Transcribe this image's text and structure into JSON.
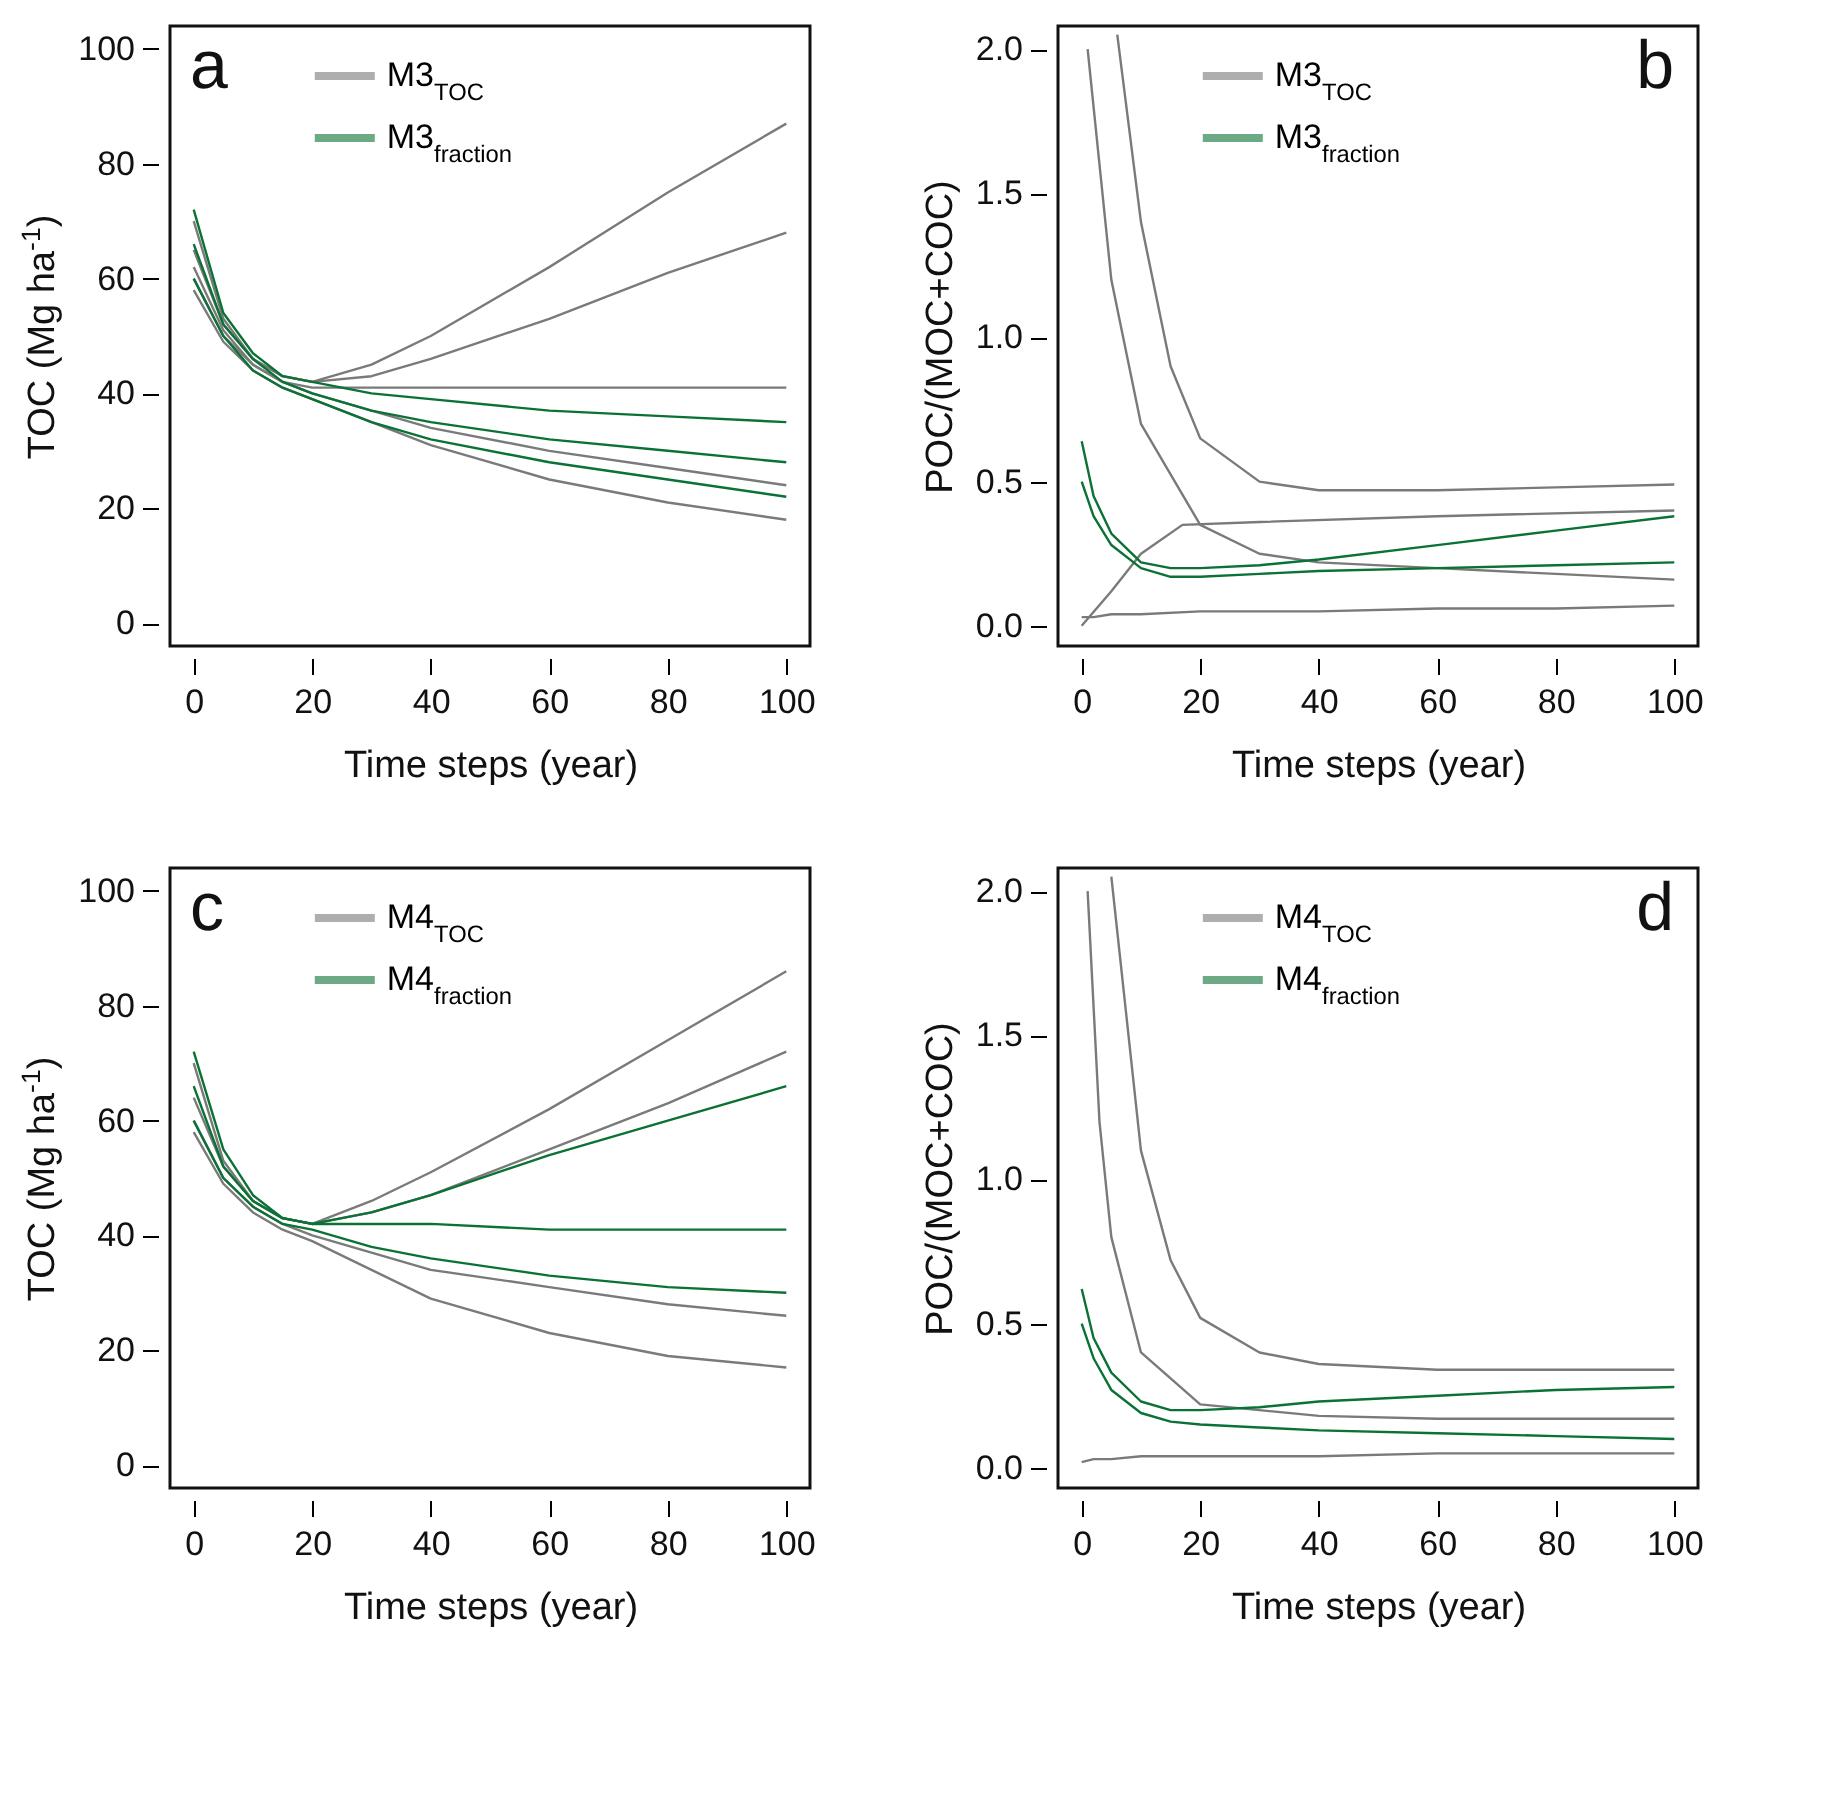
{
  "chart_data": [
    {
      "type": "line",
      "xlabel": "Time steps (year)",
      "ylabel": "TOC (Mg ha$^{-1}$)",
      "annotations": [
        "a"
      ],
      "xlim": [
        -4,
        104
      ],
      "xticks": [
        0,
        20,
        40,
        60,
        80,
        100
      ],
      "ylim": [
        -4,
        104
      ],
      "yticks": [
        0,
        20,
        40,
        60,
        80,
        100
      ],
      "grid": false,
      "legend": "top",
      "x": [
        0,
        5,
        10,
        15,
        20,
        30,
        40,
        60,
        80,
        100
      ],
      "series": [
        {
          "name": "M3$_{TOC}$",
          "color": "#7a7a7a",
          "values": [
            70,
            53,
            46,
            43,
            42,
            45,
            50,
            62,
            75,
            87
          ]
        },
        {
          "color": "#7a7a7a",
          "values": [
            65,
            52,
            46,
            43,
            42,
            43,
            46,
            53,
            61,
            68
          ]
        },
        {
          "color": "#7a7a7a",
          "values": [
            62,
            51,
            45,
            42,
            41,
            41,
            41,
            41,
            41,
            41
          ]
        },
        {
          "color": "#7a7a7a",
          "values": [
            60,
            50,
            45,
            42,
            40,
            37,
            34,
            30,
            27,
            24
          ]
        },
        {
          "color": "#7a7a7a",
          "values": [
            58,
            49,
            44,
            41,
            39,
            35,
            31,
            25,
            21,
            18
          ]
        },
        {
          "name": "M3$_{fraction}$",
          "color": "#0b7236",
          "values": [
            72,
            54,
            47,
            43,
            42,
            40,
            39,
            37,
            36,
            35
          ]
        },
        {
          "color": "#0b7236",
          "values": [
            66,
            52,
            46,
            42,
            40,
            37,
            35,
            32,
            30,
            28
          ]
        },
        {
          "color": "#0b7236",
          "values": [
            60,
            50,
            44,
            41,
            39,
            35,
            32,
            28,
            25,
            22
          ]
        }
      ]
    },
    {
      "type": "line",
      "xlabel": "Time steps (year)",
      "ylabel": "POC/(MOC+COC)",
      "annotations": [
        "b"
      ],
      "xlim": [
        -4,
        104
      ],
      "xticks": [
        0,
        20,
        40,
        60,
        80,
        100
      ],
      "ylim": [
        -0.07,
        2.08
      ],
      "yticks": [
        {
          "value": 0,
          "label": "0.0"
        },
        0.5,
        {
          "value": 1,
          "label": "1.0"
        },
        1.5,
        {
          "value": 2,
          "label": "2.0"
        }
      ],
      "grid": false,
      "legend": "top",
      "series": [
        {
          "name": "M3$_{TOC}$",
          "color": "#7a7a7a",
          "x": [
            6,
            10,
            15,
            20,
            30,
            40,
            60,
            80,
            100
          ],
          "values": [
            2.05,
            1.4,
            0.9,
            0.65,
            0.5,
            0.47,
            0.47,
            0.48,
            0.49
          ]
        },
        {
          "color": "#7a7a7a",
          "x": [
            1,
            5,
            10,
            20,
            30,
            40,
            60,
            80,
            100
          ],
          "values": [
            2.0,
            1.2,
            0.7,
            0.35,
            0.25,
            0.22,
            0.2,
            0.18,
            0.16
          ]
        },
        {
          "color": "#7a7a7a",
          "x": [
            0,
            2,
            5,
            10,
            20,
            40,
            60,
            80,
            100
          ],
          "values": [
            0.03,
            0.03,
            0.04,
            0.04,
            0.05,
            0.05,
            0.06,
            0.06,
            0.07
          ]
        },
        {
          "color": "#7a7a7a",
          "x": [
            0,
            5,
            10,
            17,
            30,
            60,
            100
          ],
          "values": [
            0.0,
            0.12,
            0.25,
            0.35,
            0.36,
            0.38,
            0.4
          ]
        },
        {
          "name": "M3$_{fraction}$",
          "color": "#0b7236",
          "x": [
            0,
            2,
            5,
            10,
            15,
            20,
            30,
            40,
            60,
            80,
            100
          ],
          "values": [
            0.64,
            0.45,
            0.32,
            0.22,
            0.2,
            0.2,
            0.21,
            0.23,
            0.28,
            0.33,
            0.38
          ]
        },
        {
          "color": "#0b7236",
          "x": [
            0,
            2,
            5,
            10,
            15,
            20,
            30,
            40,
            60,
            80,
            100
          ],
          "values": [
            0.5,
            0.38,
            0.28,
            0.2,
            0.17,
            0.17,
            0.18,
            0.19,
            0.2,
            0.21,
            0.22
          ]
        }
      ]
    },
    {
      "type": "line",
      "xlabel": "Time steps (year)",
      "ylabel": "TOC (Mg ha$^{-1}$)",
      "annotations": [
        "c"
      ],
      "xlim": [
        -4,
        104
      ],
      "xticks": [
        0,
        20,
        40,
        60,
        80,
        100
      ],
      "ylim": [
        -4,
        104
      ],
      "yticks": [
        0,
        20,
        40,
        60,
        80,
        100
      ],
      "grid": false,
      "legend": "top",
      "x": [
        0,
        5,
        10,
        15,
        20,
        30,
        40,
        60,
        80,
        100
      ],
      "series": [
        {
          "name": "M4$_{TOC}$",
          "color": "#7a7a7a",
          "values": [
            70,
            53,
            46,
            43,
            42,
            46,
            51,
            62,
            74,
            86
          ]
        },
        {
          "color": "#7a7a7a",
          "values": [
            64,
            52,
            46,
            43,
            42,
            44,
            47,
            55,
            63,
            72
          ]
        },
        {
          "color": "#7a7a7a",
          "values": [
            60,
            50,
            45,
            42,
            40,
            37,
            34,
            31,
            28,
            26
          ]
        },
        {
          "color": "#7a7a7a",
          "values": [
            58,
            49,
            44,
            41,
            39,
            34,
            29,
            23,
            19,
            17
          ]
        },
        {
          "name": "M4$_{fraction}$",
          "color": "#0b7236",
          "values": [
            72,
            55,
            47,
            43,
            42,
            44,
            47,
            54,
            60,
            66
          ]
        },
        {
          "color": "#0b7236",
          "values": [
            66,
            52,
            46,
            43,
            42,
            42,
            42,
            41,
            41,
            41
          ]
        },
        {
          "color": "#0b7236",
          "values": [
            60,
            50,
            45,
            42,
            41,
            38,
            36,
            33,
            31,
            30
          ]
        }
      ]
    },
    {
      "type": "line",
      "xlabel": "Time steps (year)",
      "ylabel": "POC/(MOC+COC)",
      "annotations": [
        "d"
      ],
      "xlim": [
        -4,
        104
      ],
      "xticks": [
        0,
        20,
        40,
        60,
        80,
        100
      ],
      "ylim": [
        -0.07,
        2.08
      ],
      "yticks": [
        {
          "value": 0,
          "label": "0.0"
        },
        0.5,
        {
          "value": 1,
          "label": "1.0"
        },
        1.5,
        {
          "value": 2,
          "label": "2.0"
        }
      ],
      "grid": false,
      "legend": "top",
      "series": [
        {
          "name": "M4$_{TOC}$",
          "color": "#7a7a7a",
          "x": [
            5,
            10,
            15,
            20,
            30,
            40,
            60,
            80,
            100
          ],
          "values": [
            2.05,
            1.1,
            0.72,
            0.52,
            0.4,
            0.36,
            0.34,
            0.34,
            0.34
          ]
        },
        {
          "color": "#7a7a7a",
          "x": [
            1,
            3,
            5,
            10,
            20,
            40,
            60,
            80,
            100
          ],
          "values": [
            2.0,
            1.2,
            0.8,
            0.4,
            0.22,
            0.18,
            0.17,
            0.17,
            0.17
          ]
        },
        {
          "color": "#7a7a7a",
          "x": [
            0,
            2,
            5,
            10,
            20,
            40,
            60,
            80,
            100
          ],
          "values": [
            0.02,
            0.03,
            0.03,
            0.04,
            0.04,
            0.04,
            0.05,
            0.05,
            0.05
          ]
        },
        {
          "name": "M4$_{fraction}$",
          "color": "#0b7236",
          "x": [
            0,
            2,
            5,
            10,
            15,
            20,
            30,
            40,
            60,
            80,
            100
          ],
          "values": [
            0.62,
            0.45,
            0.33,
            0.23,
            0.2,
            0.2,
            0.21,
            0.23,
            0.25,
            0.27,
            0.28
          ]
        },
        {
          "color": "#0b7236",
          "x": [
            0,
            2,
            5,
            10,
            15,
            20,
            30,
            40,
            60,
            80,
            100
          ],
          "values": [
            0.5,
            0.38,
            0.27,
            0.19,
            0.16,
            0.15,
            0.14,
            0.13,
            0.12,
            0.11,
            0.1
          ]
        }
      ]
    }
  ]
}
